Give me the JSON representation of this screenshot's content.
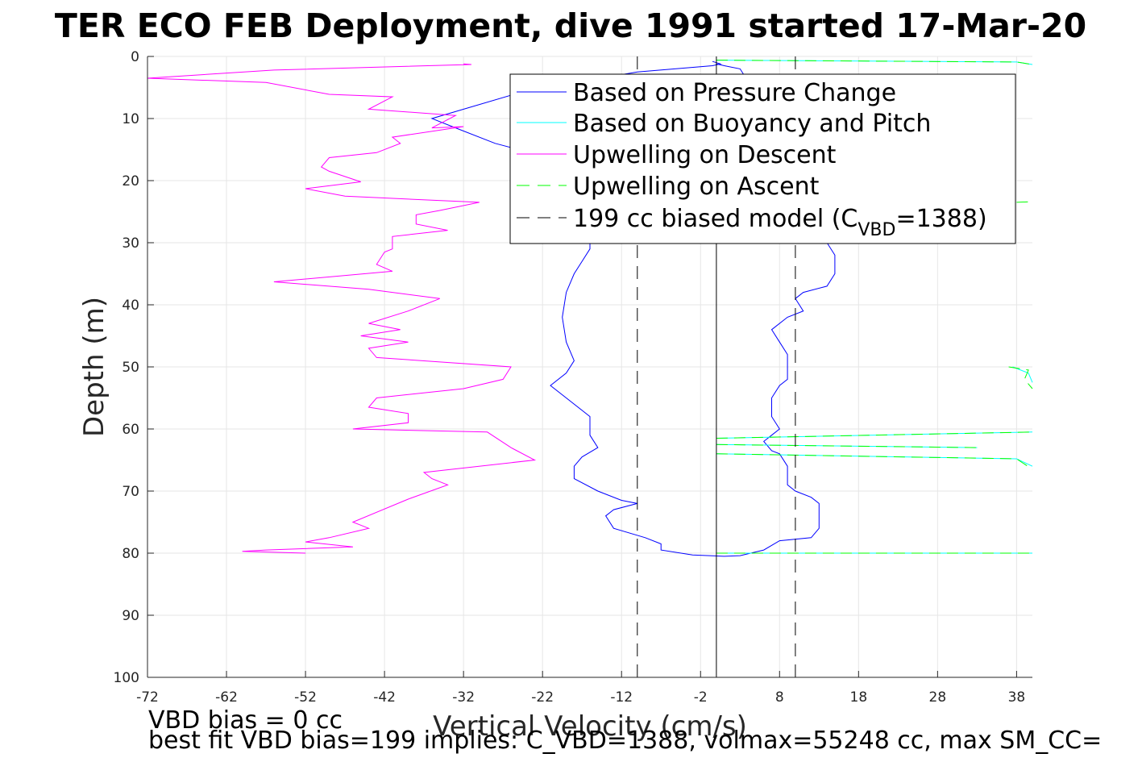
{
  "chart_data": {
    "type": "line",
    "title": "TER ECO FEB Deployment, dive 1991 started 17-Mar-20",
    "xlabel": "Vertical Velocity (cm/s)",
    "ylabel": "Depth (m)",
    "xlim": [
      -72,
      40
    ],
    "ylim": [
      0,
      100
    ],
    "y_reversed": true,
    "grid": true,
    "xticks": [
      -72,
      -62,
      -52,
      -42,
      -32,
      -22,
      -12,
      -2,
      8,
      18,
      28,
      38
    ],
    "yticks": [
      0,
      10,
      20,
      30,
      40,
      50,
      60,
      70,
      80,
      90,
      100
    ],
    "legend_position": "top-right",
    "legend": [
      {
        "id": "pressure",
        "label": "Based on Pressure Change",
        "color": "#0000ff",
        "dash": "solid"
      },
      {
        "id": "buoyancy",
        "label": "Based on Buoyancy and Pitch",
        "color": "#00ffff",
        "dash": "solid"
      },
      {
        "id": "upw_desc",
        "label": "Upwelling on Descent",
        "color": "#ff00ff",
        "dash": "solid"
      },
      {
        "id": "upw_asc",
        "label": "Upwelling on Ascent",
        "color": "#00ff00",
        "dash": "dashed"
      },
      {
        "id": "model",
        "label_main": "199 cc biased model (C",
        "label_sub": "VBD",
        "label_end": "=1388)",
        "color": "#000000",
        "dash": "dashed"
      }
    ],
    "series": [
      {
        "name": "Based on Pressure Change",
        "color": "#0000ff",
        "style": "solid",
        "segments": [
          [
            [
              -0.5,
              0.8
            ],
            [
              0.5,
              1.2
            ],
            [
              -0.5,
              1.5
            ],
            [
              -10,
              2.5
            ],
            [
              -24,
              5.5
            ],
            [
              -36,
              10
            ],
            [
              -33,
              11.5
            ],
            [
              -28,
              14
            ],
            [
              -22,
              16
            ],
            [
              -18,
              18
            ],
            [
              -17,
              22
            ],
            [
              -16,
              26
            ],
            [
              -16,
              31
            ],
            [
              -17,
              33
            ],
            [
              -18,
              35
            ],
            [
              -19,
              38
            ],
            [
              -19.5,
              42
            ],
            [
              -19,
              46
            ],
            [
              -18,
              49
            ],
            [
              -19,
              51
            ],
            [
              -21,
              53
            ],
            [
              -19,
              55
            ],
            [
              -17,
              57
            ],
            [
              -16,
              58
            ],
            [
              -16,
              61
            ],
            [
              -15,
              63
            ],
            [
              -17,
              64.5
            ],
            [
              -18,
              66
            ],
            [
              -18,
              68
            ],
            [
              -15,
              70
            ],
            [
              -12,
              71.5
            ],
            [
              -10,
              72
            ],
            [
              -13,
              73
            ],
            [
              -14,
              74
            ],
            [
              -13,
              76
            ],
            [
              -9,
              77.5
            ],
            [
              -7,
              78.5
            ],
            [
              -7,
              79.5
            ],
            [
              -3,
              80.3
            ],
            [
              1,
              80.5
            ],
            [
              3,
              80.4
            ],
            [
              6,
              79.5
            ],
            [
              8,
              78
            ],
            [
              12,
              77.5
            ],
            [
              13,
              76
            ],
            [
              13,
              72
            ],
            [
              12,
              71
            ],
            [
              10,
              70
            ],
            [
              9,
              69
            ],
            [
              9,
              66
            ],
            [
              8,
              64
            ],
            [
              7,
              63.5
            ],
            [
              6,
              62
            ],
            [
              7,
              61
            ],
            [
              8,
              60
            ],
            [
              7,
              58
            ],
            [
              7,
              55
            ],
            [
              8,
              53
            ],
            [
              9,
              52
            ],
            [
              9,
              50
            ],
            [
              9,
              48
            ],
            [
              8,
              46
            ],
            [
              7,
              44
            ],
            [
              9,
              42
            ],
            [
              11,
              41
            ],
            [
              10,
              39
            ],
            [
              11,
              38
            ],
            [
              14,
              37
            ],
            [
              15,
              35
            ],
            [
              15,
              32
            ],
            [
              14,
              30
            ],
            [
              15,
              27
            ],
            [
              14,
              24
            ],
            [
              12,
              22
            ],
            [
              14,
              20
            ],
            [
              12,
              17
            ],
            [
              14,
              15
            ],
            [
              13,
              13
            ],
            [
              13,
              11
            ],
            [
              9,
              9
            ],
            [
              7,
              7
            ],
            [
              4,
              4
            ],
            [
              3,
              2
            ],
            [
              1,
              1.5
            ],
            [
              0,
              1.2
            ]
          ]
        ]
      },
      {
        "name": "Based on Buoyancy and Pitch",
        "color": "#00ffff",
        "style": "solid",
        "segments": [
          [
            [
              0,
              0.6
            ],
            [
              38,
              0.9
            ],
            [
              40,
              1.3
            ]
          ],
          [
            [
              0,
              61.5
            ],
            [
              40,
              60.5
            ]
          ],
          [
            [
              0,
              62.5
            ],
            [
              33,
              63
            ]
          ],
          [
            [
              0,
              64
            ],
            [
              38,
              64.8
            ],
            [
              40,
              66
            ]
          ],
          [
            [
              0,
              80
            ],
            [
              40,
              80
            ]
          ],
          [
            [
              37.5,
              50
            ],
            [
              39.5,
              51
            ],
            [
              40,
              52.5
            ]
          ]
        ]
      },
      {
        "name": "Upwelling on Descent",
        "color": "#ff00ff",
        "style": "solid",
        "segments": [
          [
            [
              -32,
              1.2
            ],
            [
              -31,
              1.3
            ],
            [
              -56,
              2.2
            ],
            [
              -72,
              3.5
            ],
            [
              -57,
              4.2
            ],
            [
              -49,
              6.1
            ],
            [
              -41,
              6.5
            ],
            [
              -44,
              8.5
            ],
            [
              -33,
              9.5
            ],
            [
              -36,
              11.5
            ],
            [
              -32,
              11.3
            ],
            [
              -41,
              13
            ],
            [
              -40,
              14
            ],
            [
              -43,
              15.5
            ],
            [
              -49,
              16.3
            ],
            [
              -50,
              17.8
            ],
            [
              -49,
              18.5
            ],
            [
              -45,
              20.2
            ],
            [
              -52,
              21.3
            ],
            [
              -47,
              22.5
            ],
            [
              -30,
              23.5
            ],
            [
              -35,
              24.8
            ],
            [
              -38,
              25.5
            ],
            [
              -38,
              27
            ],
            [
              -34,
              28
            ],
            [
              -41,
              29
            ],
            [
              -41,
              31
            ],
            [
              -42,
              31.5
            ],
            [
              -43,
              33.5
            ],
            [
              -41,
              34.6
            ],
            [
              -56,
              36.3
            ],
            [
              -44,
              37.5
            ],
            [
              -35,
              39
            ],
            [
              -39,
              41
            ],
            [
              -44,
              43
            ],
            [
              -40,
              44
            ],
            [
              -45,
              45
            ],
            [
              -39,
              46
            ],
            [
              -44,
              47
            ],
            [
              -43,
              48.5
            ],
            [
              -26,
              50
            ],
            [
              -27,
              52
            ],
            [
              -32,
              53.5
            ],
            [
              -43,
              55
            ],
            [
              -44,
              56.5
            ],
            [
              -39,
              57.5
            ],
            [
              -39,
              59
            ],
            [
              -46,
              60
            ],
            [
              -29,
              60.5
            ],
            [
              -26,
              63
            ],
            [
              -23,
              65
            ],
            [
              -37,
              67
            ],
            [
              -36,
              68
            ],
            [
              -34,
              69
            ],
            [
              -39,
              71.3
            ],
            [
              -46,
              75
            ],
            [
              -44,
              76
            ],
            [
              -49,
              77.5
            ],
            [
              -52,
              78.2
            ],
            [
              -46,
              79
            ],
            [
              -57,
              79.5
            ],
            [
              -60,
              79.7
            ],
            [
              -52,
              80
            ]
          ]
        ]
      },
      {
        "name": "Upwelling on Ascent",
        "color": "#00ff00",
        "style": "dashed",
        "segments": [
          [
            [
              0,
              0.6
            ],
            [
              38,
              0.9
            ],
            [
              40,
              1.3
            ]
          ],
          [
            [
              0,
              61.5
            ],
            [
              40,
              60.5
            ]
          ],
          [
            [
              0,
              62.5
            ],
            [
              33,
              63
            ]
          ],
          [
            [
              0,
              64
            ],
            [
              38,
              64.8
            ],
            [
              40,
              66.5
            ]
          ],
          [
            [
              0,
              80
            ],
            [
              40,
              80
            ]
          ],
          [
            [
              38,
              23.5
            ],
            [
              40,
              23.4
            ]
          ],
          [
            [
              37,
              50
            ],
            [
              39.5,
              50.5
            ],
            [
              39,
              52
            ],
            [
              40,
              53.5
            ]
          ]
        ]
      },
      {
        "name": "199 cc biased model (C_VBD=1388)",
        "color": "#000000",
        "style": "dashed",
        "segments": [
          [
            [
              -10,
              0
            ],
            [
              -10,
              100
            ]
          ],
          [
            [
              10,
              0
            ],
            [
              10,
              100
            ]
          ]
        ]
      },
      {
        "name": "",
        "color": "#000000",
        "style": "solid",
        "thin": true,
        "segments": [
          [
            [
              0,
              0
            ],
            [
              0,
              100
            ]
          ]
        ]
      }
    ]
  },
  "notes": {
    "line1": "VBD bias = 0 cc",
    "line2": "best fit VBD bias=199 implies: C_VBD=1388, volmax=55248 cc, max SM_CC="
  }
}
